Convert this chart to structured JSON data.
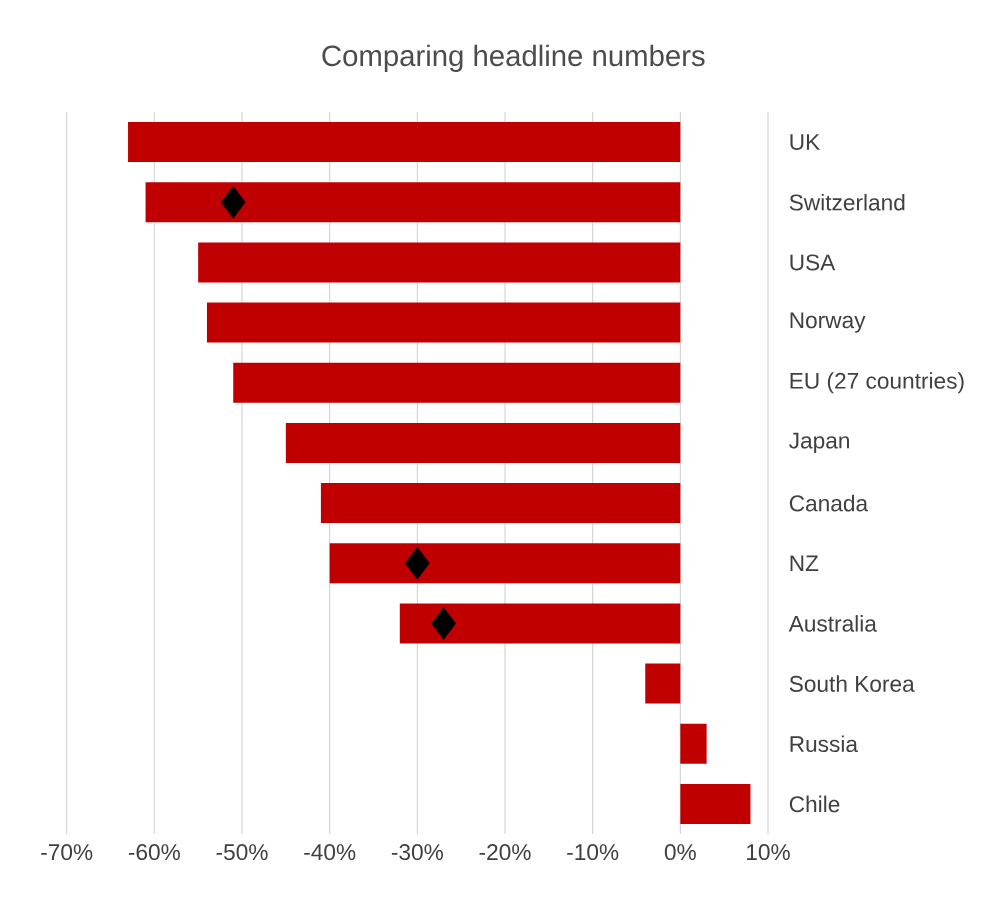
{
  "chart_data": {
    "type": "bar",
    "orientation": "horizontal",
    "title": "Comparing headline numbers",
    "categories": [
      "UK",
      "Switzerland",
      "USA",
      "Norway",
      "EU (27 countries)",
      "Japan",
      "Canada",
      "NZ",
      "Australia",
      "South Korea",
      "Russia",
      "Chile"
    ],
    "series": [
      {
        "color": "#c00000",
        "values": [
          -63,
          -61,
          -55,
          -54,
          -51,
          -45,
          -41,
          -40,
          -32,
          -4,
          3,
          8
        ]
      },
      {
        "type": "scatter",
        "marker": "diamond",
        "color": "#000000",
        "values": [
          null,
          -51,
          null,
          null,
          null,
          null,
          null,
          -30,
          -27,
          null,
          null,
          null
        ]
      }
    ],
    "xlim": [
      -70,
      10
    ],
    "xticks": [
      {
        "value": -70,
        "label": "-70%"
      },
      {
        "value": -60,
        "label": "-60%"
      },
      {
        "value": -50,
        "label": "-50%"
      },
      {
        "value": -40,
        "label": "-40%"
      },
      {
        "value": -30,
        "label": "-30%"
      },
      {
        "value": -20,
        "label": "-20%"
      },
      {
        "value": -10,
        "label": "-10%"
      },
      {
        "value": 0,
        "label": "0%"
      },
      {
        "value": 10,
        "label": "10%"
      }
    ],
    "grid": "x"
  }
}
